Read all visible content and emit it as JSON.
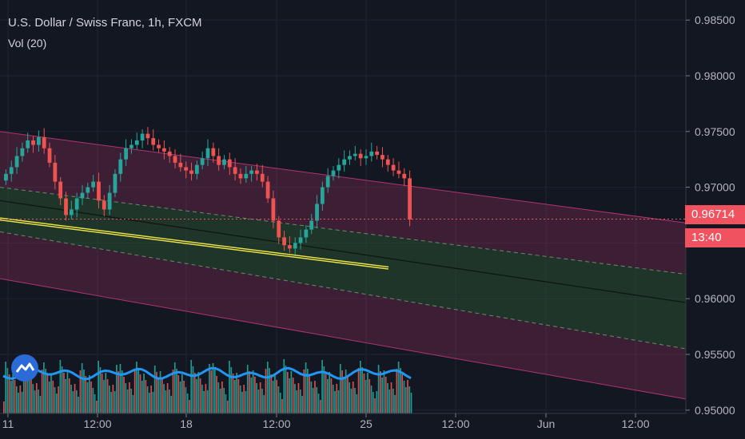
{
  "header": {
    "title": "U.S. Dollar / Swiss Franc, 1h, FXCM",
    "volume_label": "Vol (20)"
  },
  "price_tags": {
    "last_price": "0.96714",
    "countdown": "13:40",
    "color": "#f0525f"
  },
  "colors": {
    "background": "#131722",
    "up_candle": "#26a69a",
    "down_candle": "#ef5350",
    "channel_outer": "#8c2d5a",
    "channel_inner": "#2e5a35",
    "trendline": "#e6e64a",
    "volume_ma": "#2196f3"
  },
  "chart_data": {
    "type": "candlestick",
    "title": "U.S. Dollar / Swiss Franc, 1h, FXCM",
    "ylim": [
      0.9497,
      0.9868
    ],
    "y_ticks": [
      "0.98500",
      "0.98000",
      "0.97500",
      "0.97000",
      "0.96500",
      "0.96000",
      "0.95500",
      "0.95000"
    ],
    "x_ticks": [
      "11",
      "12:00",
      "18",
      "12:00",
      "25",
      "12:00",
      "Jun",
      "12:00"
    ],
    "last_price": 0.96714,
    "candles_close": [
      0.9712,
      0.9718,
      0.9728,
      0.9735,
      0.9742,
      0.9738,
      0.9745,
      0.9735,
      0.9722,
      0.9705,
      0.969,
      0.9675,
      0.968,
      0.969,
      0.9695,
      0.97,
      0.9705,
      0.9688,
      0.968,
      0.9695,
      0.9712,
      0.9725,
      0.9735,
      0.9738,
      0.9742,
      0.9748,
      0.9744,
      0.9738,
      0.9735,
      0.9732,
      0.9728,
      0.9722,
      0.9718,
      0.9715,
      0.9712,
      0.972,
      0.9726,
      0.9735,
      0.9728,
      0.972,
      0.9725,
      0.9718,
      0.9712,
      0.9708,
      0.9712,
      0.9715,
      0.9712,
      0.9705,
      0.969,
      0.967,
      0.9655,
      0.9648,
      0.9645,
      0.965,
      0.9655,
      0.9662,
      0.967,
      0.9685,
      0.97,
      0.971,
      0.9715,
      0.972,
      0.9725,
      0.9728,
      0.973,
      0.9726,
      0.9728,
      0.9732,
      0.9729,
      0.9725,
      0.972,
      0.9715,
      0.9712,
      0.9708,
      0.9671
    ],
    "volume_ma_level": 0.55
  }
}
